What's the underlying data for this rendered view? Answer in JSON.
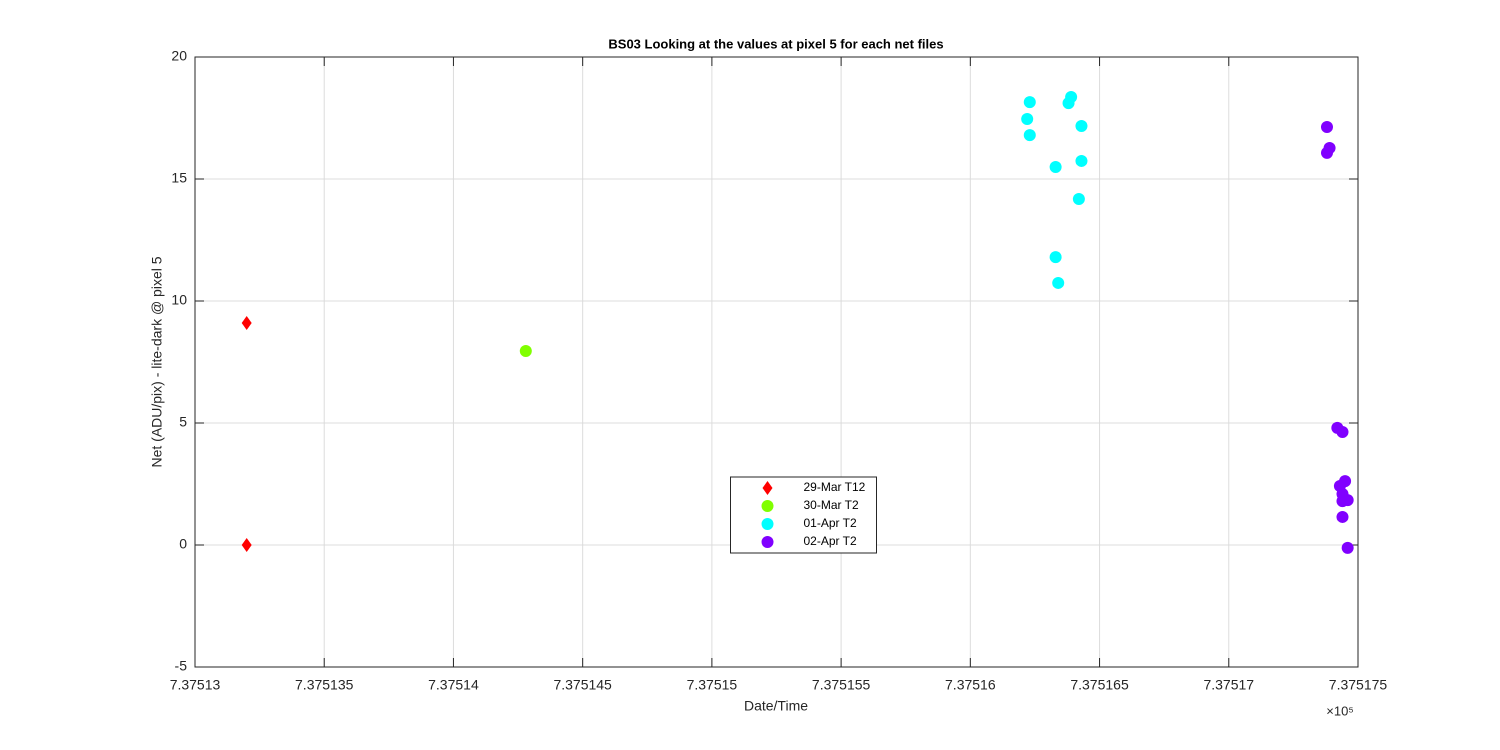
{
  "chart_data": {
    "type": "scatter",
    "title": "BS03  Looking at the values at pixel 5 for each net files",
    "x_label": "Date/Time",
    "y_label": "Net (ADU/pix) - lite-dark @ pixel 5",
    "x_multiplier": "×10⁵",
    "xlim": [
      7.37513,
      7.375175
    ],
    "xticks": [
      7.37513,
      7.375135,
      7.37514,
      7.375145,
      7.37515,
      7.375155,
      7.37516,
      7.375165,
      7.37517,
      7.375175
    ],
    "ylim": [
      -5,
      20
    ],
    "yticks": [
      -5,
      0,
      5,
      10,
      15,
      20
    ],
    "grid": true,
    "legend_location": "south",
    "series": [
      {
        "name": "29-Mar T12",
        "color": "#ff0000",
        "marker": "diamond",
        "x": [
          7.375132,
          7.375132
        ],
        "values": [
          9.1,
          0
        ]
      },
      {
        "name": "30-Mar T2",
        "color": "#80ff00",
        "marker": "circle",
        "x": [
          7.3751428
        ],
        "values": [
          7.95
        ]
      },
      {
        "name": "01-Apr T2",
        "color": "#00ffff",
        "marker": "circle",
        "x": [
          7.3751623,
          7.3751622,
          7.3751623,
          7.3751633,
          7.3751633,
          7.3751634,
          7.3751639,
          7.3751638,
          7.3751643,
          7.3751643,
          7.3751642
        ],
        "values": [
          18.15,
          17.46,
          16.8,
          15.49,
          11.8,
          10.74,
          18.36,
          18.11,
          17.17,
          15.74,
          14.18
        ]
      },
      {
        "name": "02-Apr T2",
        "color": "#8000ff",
        "marker": "circle",
        "x": [
          7.3751738,
          7.3751738,
          7.3751739,
          7.3751742,
          7.3751744,
          7.3751743,
          7.3751745,
          7.3751744,
          7.3751744,
          7.3751746,
          7.3751744,
          7.3751746
        ],
        "values": [
          17.13,
          16.07,
          16.27,
          4.8,
          4.63,
          2.42,
          2.62,
          2.09,
          1.8,
          1.84,
          1.15,
          -0.12
        ]
      }
    ]
  }
}
